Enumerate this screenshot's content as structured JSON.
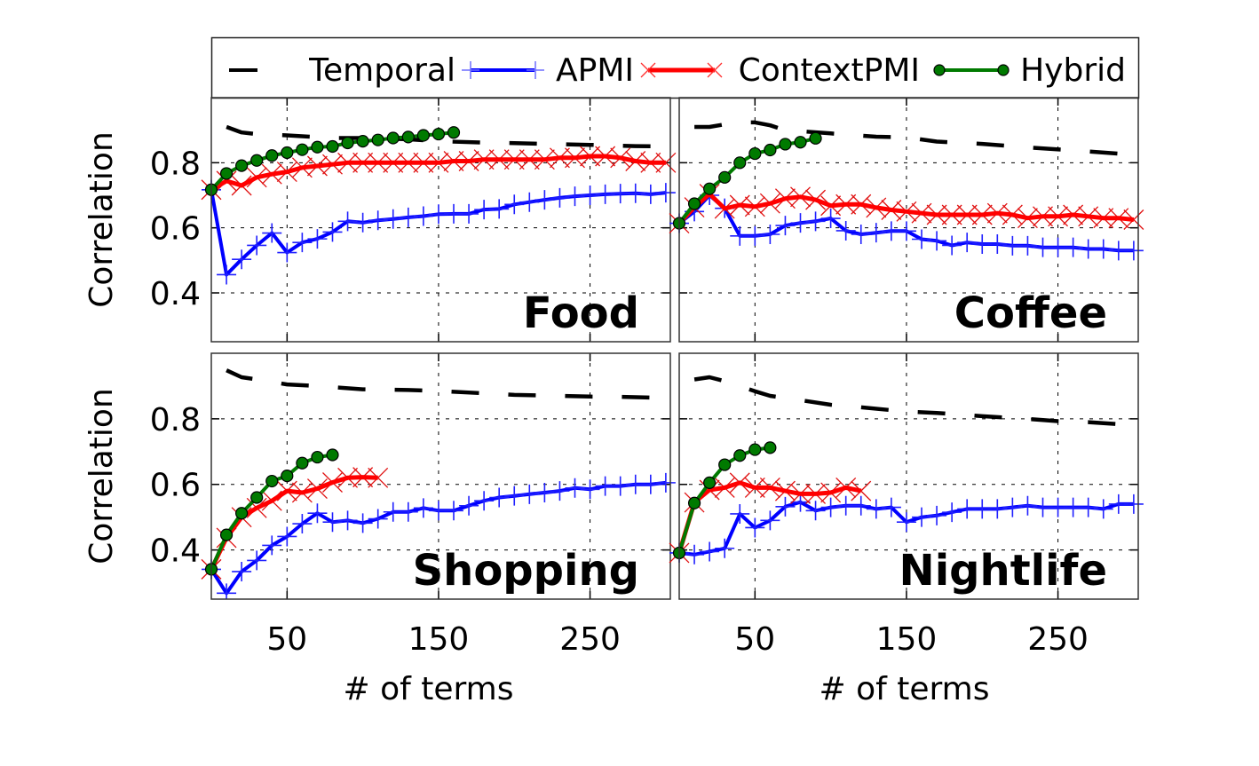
{
  "chart_data": {
    "type": "line",
    "legend": {
      "placement": "top",
      "entries": [
        "Temporal",
        "APMI",
        "ContextPMI",
        "Hybrid"
      ]
    },
    "series_styles": {
      "Temporal": {
        "color": "#000000",
        "marker": "none",
        "dashed": true
      },
      "APMI": {
        "color": "#0000ff",
        "marker": "plus"
      },
      "ContextPMI": {
        "color": "#ff0000",
        "marker": "cross"
      },
      "Hybrid": {
        "color": "#007a00",
        "marker": "circle"
      }
    },
    "xlabel": "# of terms",
    "ylabel": "Correlation",
    "xlim": [
      0,
      303
    ],
    "ylim": [
      0.25,
      1.0
    ],
    "xticks": [
      50,
      150,
      250
    ],
    "xtick_labels": [
      "50",
      "150",
      "250"
    ],
    "yticks": [
      0.4,
      0.6,
      0.8
    ],
    "ytick_labels": [
      "0.4",
      "0.6",
      "0.8"
    ],
    "grid": true,
    "panels": [
      {
        "title": "Food",
        "series": {
          "Temporal": {
            "x": [
              10,
              20,
              30,
              50,
              80,
              100,
              130,
              150,
              180,
              200,
              230,
              250,
              280,
              300
            ],
            "y": [
              0.91,
              0.893,
              0.888,
              0.884,
              0.876,
              0.876,
              0.872,
              0.866,
              0.862,
              0.86,
              0.857,
              0.855,
              0.851,
              0.85
            ]
          },
          "APMI": {
            "x_start": 0,
            "x_step": 10,
            "y": [
              0.717,
              0.456,
              0.503,
              0.546,
              0.584,
              0.524,
              0.555,
              0.566,
              0.587,
              0.62,
              0.616,
              0.623,
              0.627,
              0.632,
              0.636,
              0.642,
              0.643,
              0.643,
              0.656,
              0.658,
              0.672,
              0.679,
              0.686,
              0.692,
              0.697,
              0.7,
              0.703,
              0.705,
              0.706,
              0.703,
              0.708
            ]
          },
          "ContextPMI": {
            "x_start": 0,
            "x_step": 10,
            "y": [
              0.717,
              0.744,
              0.73,
              0.755,
              0.765,
              0.772,
              0.785,
              0.79,
              0.795,
              0.8,
              0.8,
              0.8,
              0.8,
              0.8,
              0.8,
              0.8,
              0.805,
              0.805,
              0.81,
              0.81,
              0.81,
              0.81,
              0.81,
              0.815,
              0.815,
              0.82,
              0.82,
              0.815,
              0.805,
              0.8,
              0.8
            ]
          },
          "Hybrid": {
            "x_start": 0,
            "x_step": 10,
            "y": [
              0.717,
              0.767,
              0.791,
              0.807,
              0.822,
              0.831,
              0.84,
              0.848,
              0.85,
              0.861,
              0.866,
              0.87,
              0.876,
              0.879,
              0.884,
              0.888,
              0.893
            ]
          }
        }
      },
      {
        "title": "Coffee",
        "series": {
          "Temporal": {
            "x": [
              10,
              20,
              30,
              40,
              50,
              60,
              70,
              80,
              100,
              130,
              150,
              170,
              200,
              230,
              260,
              290,
              300
            ],
            "y": [
              0.91,
              0.91,
              0.918,
              0.924,
              0.924,
              0.915,
              0.9,
              0.897,
              0.89,
              0.88,
              0.878,
              0.865,
              0.858,
              0.847,
              0.838,
              0.828,
              0.822
            ]
          },
          "APMI": {
            "x_start": 0,
            "x_step": 10,
            "y": [
              0.614,
              0.65,
              0.7,
              0.66,
              0.575,
              0.575,
              0.58,
              0.607,
              0.615,
              0.62,
              0.629,
              0.591,
              0.58,
              0.585,
              0.59,
              0.59,
              0.565,
              0.56,
              0.546,
              0.555,
              0.55,
              0.55,
              0.545,
              0.545,
              0.54,
              0.54,
              0.54,
              0.535,
              0.535,
              0.53,
              0.53
            ]
          },
          "ContextPMI": {
            "x_start": 0,
            "x_step": 10,
            "y": [
              0.614,
              0.663,
              0.704,
              0.659,
              0.67,
              0.665,
              0.675,
              0.69,
              0.695,
              0.686,
              0.668,
              0.672,
              0.672,
              0.662,
              0.655,
              0.65,
              0.645,
              0.64,
              0.64,
              0.64,
              0.64,
              0.645,
              0.64,
              0.63,
              0.635,
              0.635,
              0.64,
              0.635,
              0.63,
              0.63,
              0.625
            ]
          },
          "Hybrid": {
            "x_start": 0,
            "x_step": 10,
            "y": [
              0.614,
              0.674,
              0.72,
              0.755,
              0.8,
              0.828,
              0.839,
              0.857,
              0.863,
              0.875
            ]
          }
        }
      },
      {
        "title": "Shopping",
        "series": {
          "Temporal": {
            "x": [
              10,
              20,
              30,
              50,
              70,
              100,
              130,
              150,
              180,
              200,
              230,
              250,
              270,
              290,
              300
            ],
            "y": [
              0.948,
              0.927,
              0.92,
              0.905,
              0.9,
              0.89,
              0.888,
              0.885,
              0.878,
              0.873,
              0.87,
              0.868,
              0.867,
              0.865,
              0.864
            ]
          },
          "APMI": {
            "x_start": 0,
            "x_step": 10,
            "y": [
              0.341,
              0.268,
              0.334,
              0.368,
              0.414,
              0.441,
              0.48,
              0.512,
              0.485,
              0.49,
              0.482,
              0.495,
              0.516,
              0.516,
              0.528,
              0.52,
              0.52,
              0.535,
              0.55,
              0.56,
              0.565,
              0.57,
              0.575,
              0.58,
              0.589,
              0.585,
              0.595,
              0.595,
              0.6,
              0.6,
              0.605
            ]
          },
          "ContextPMI": {
            "x_start": 0,
            "x_step": 10,
            "y": [
              0.341,
              0.437,
              0.5,
              0.528,
              0.55,
              0.58,
              0.575,
              0.587,
              0.606,
              0.62,
              0.622,
              0.62
            ]
          },
          "Hybrid": {
            "x_start": 0,
            "x_step": 10,
            "y": [
              0.341,
              0.446,
              0.512,
              0.56,
              0.61,
              0.626,
              0.665,
              0.683,
              0.69
            ]
          }
        }
      },
      {
        "title": "Nightlife",
        "series": {
          "Temporal": {
            "x": [
              10,
              20,
              30,
              50,
              60,
              80,
              100,
              120,
              150,
              170,
              200,
              230,
              250,
              270,
              290,
              300
            ],
            "y": [
              0.92,
              0.927,
              0.915,
              0.884,
              0.87,
              0.857,
              0.843,
              0.835,
              0.822,
              0.818,
              0.808,
              0.8,
              0.793,
              0.79,
              0.784,
              0.782
            ]
          },
          "APMI": {
            "x_start": 0,
            "x_step": 10,
            "y": [
              0.391,
              0.386,
              0.395,
              0.405,
              0.51,
              0.468,
              0.49,
              0.532,
              0.546,
              0.52,
              0.53,
              0.535,
              0.535,
              0.525,
              0.53,
              0.485,
              0.5,
              0.505,
              0.515,
              0.525,
              0.525,
              0.525,
              0.53,
              0.535,
              0.53,
              0.53,
              0.53,
              0.53,
              0.525,
              0.54,
              0.54
            ]
          },
          "ContextPMI": {
            "x_start": 0,
            "x_step": 10,
            "y": [
              0.391,
              0.545,
              0.583,
              0.59,
              0.605,
              0.59,
              0.59,
              0.58,
              0.571,
              0.571,
              0.575,
              0.59,
              0.58
            ]
          },
          "Hybrid": {
            "x_start": 0,
            "x_step": 10,
            "y": [
              0.391,
              0.543,
              0.605,
              0.66,
              0.688,
              0.706,
              0.712
            ]
          }
        }
      }
    ]
  }
}
